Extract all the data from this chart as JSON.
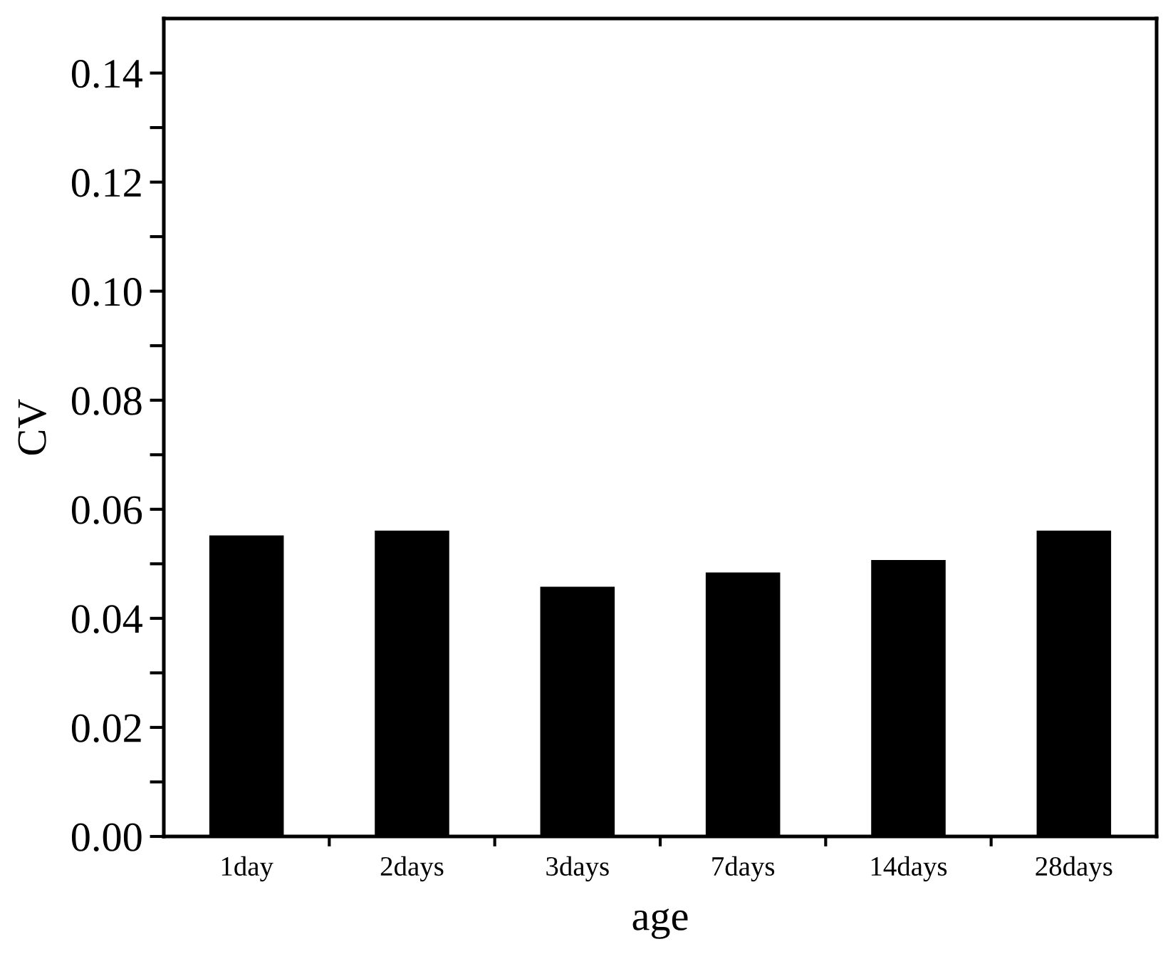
{
  "chart_data": {
    "type": "bar",
    "xlabel": "age",
    "ylabel": "CV",
    "categories": [
      "1day",
      "2days",
      "3days",
      "7days",
      "14days",
      "28days"
    ],
    "values": [
      0.0552,
      0.0561,
      0.0458,
      0.0484,
      0.0507,
      0.0561
    ],
    "color": "#000000",
    "ylim": [
      0,
      0.15
    ],
    "yticks": [
      {
        "value": 0,
        "label": "0.00"
      },
      {
        "value": 0.01,
        "label": null
      },
      {
        "value": 0.02,
        "label": "0.02"
      },
      {
        "value": 0.03,
        "label": null
      },
      {
        "value": 0.04,
        "label": "0.04"
      },
      {
        "value": 0.05,
        "label": null
      },
      {
        "value": 0.06,
        "label": "0.06"
      },
      {
        "value": 0.07,
        "label": null
      },
      {
        "value": 0.08,
        "label": "0.08"
      },
      {
        "value": 0.09,
        "label": null
      },
      {
        "value": 0.1,
        "label": "0.10"
      },
      {
        "value": 0.11,
        "label": null
      },
      {
        "value": 0.12,
        "label": "0.12"
      },
      {
        "value": 0.13,
        "label": null
      },
      {
        "value": 0.14,
        "label": "0.14"
      }
    ],
    "grid": false
  }
}
